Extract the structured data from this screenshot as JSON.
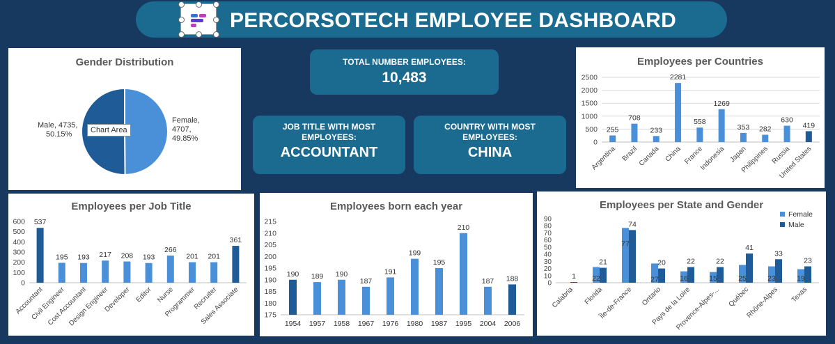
{
  "header": {
    "title": "PERCORSOTECH EMPLOYEE DASHBOARD"
  },
  "colors": {
    "background": "#17385f",
    "header": "#1b6a8f",
    "kpi": "#1b6a8f",
    "bar_light": "#4a90d9",
    "bar_dark": "#1f5b96"
  },
  "kpis": {
    "total": {
      "label": "TOTAL NUMBER EMPLOYEES:",
      "value": "10,483"
    },
    "job": {
      "label": "JOB TITLE WITH MOST EMPLOYEES:",
      "value": "ACCOUNTANT"
    },
    "country": {
      "label": "COUNTRY WITH MOST EMPLOYEES:",
      "value": "CHINA"
    }
  },
  "tooltip": "Chart Area",
  "chart_data": [
    {
      "id": "gender",
      "type": "pie",
      "title": "Gender Distribution",
      "slices": [
        {
          "name": "Female",
          "value": 4707,
          "percent": "49.85%",
          "label_lines": [
            "Female,",
            "4707,",
            "49.85%"
          ]
        },
        {
          "name": "Male",
          "value": 4735,
          "percent": "50.15%",
          "label_lines": [
            "Male, 4735,",
            "50.15%"
          ]
        }
      ]
    },
    {
      "id": "countries",
      "type": "bar",
      "title": "Employees per Countries",
      "categories": [
        "Argentina",
        "Brazil",
        "Canada",
        "China",
        "France",
        "Indonesia",
        "Japan",
        "Philippines",
        "Russia",
        "United States"
      ],
      "values": [
        255,
        708,
        233,
        2281,
        558,
        1269,
        353,
        282,
        630,
        419
      ],
      "ylim": [
        0,
        2500
      ],
      "yticks": [
        0,
        500,
        1000,
        1500,
        2000,
        2500
      ],
      "grid": true
    },
    {
      "id": "jobs",
      "type": "bar",
      "title": "Employees per Job Title",
      "categories": [
        "Accountant",
        "Civil Engineer",
        "Cost Accountant",
        "Design Engineer",
        "Developer",
        "Editor",
        "Nurse",
        "Programmer",
        "Recruiter",
        "Sales Associate"
      ],
      "values": [
        537,
        195,
        193,
        217,
        208,
        193,
        266,
        201,
        201,
        361
      ],
      "ylim": [
        0,
        600
      ],
      "yticks": [
        0,
        100,
        200,
        300,
        400,
        500,
        600
      ],
      "grid": false
    },
    {
      "id": "born",
      "type": "bar",
      "title": "Employees born each year",
      "categories": [
        "1954",
        "1957",
        "1958",
        "1967",
        "1976",
        "1980",
        "1987",
        "1995",
        "2004",
        "2006"
      ],
      "values": [
        190,
        189,
        190,
        187,
        191,
        199,
        195,
        210,
        187,
        188
      ],
      "ylim": [
        175,
        215
      ],
      "yticks": [
        175,
        180,
        185,
        190,
        195,
        200,
        205,
        210,
        215
      ],
      "grid": false
    },
    {
      "id": "states",
      "type": "bar",
      "title": "Employees per State and Gender",
      "categories": [
        "Calabria",
        "Florida",
        "Île-de-France",
        "Ontario",
        "Pays de la Loire",
        "Provence-Alpes-...",
        "Québec",
        "Rhône-Alpes",
        "Texas"
      ],
      "series": [
        {
          "name": "Female",
          "values": [
            null,
            22,
            77,
            27,
            16,
            15,
            25,
            23,
            19
          ]
        },
        {
          "name": "Male",
          "values": [
            1,
            21,
            74,
            20,
            22,
            22,
            41,
            33,
            23
          ]
        }
      ],
      "ylim": [
        0,
        90
      ],
      "yticks": [
        0,
        10,
        20,
        30,
        40,
        50,
        60,
        70,
        80,
        90
      ],
      "legend": "top-right",
      "grid": false
    }
  ]
}
